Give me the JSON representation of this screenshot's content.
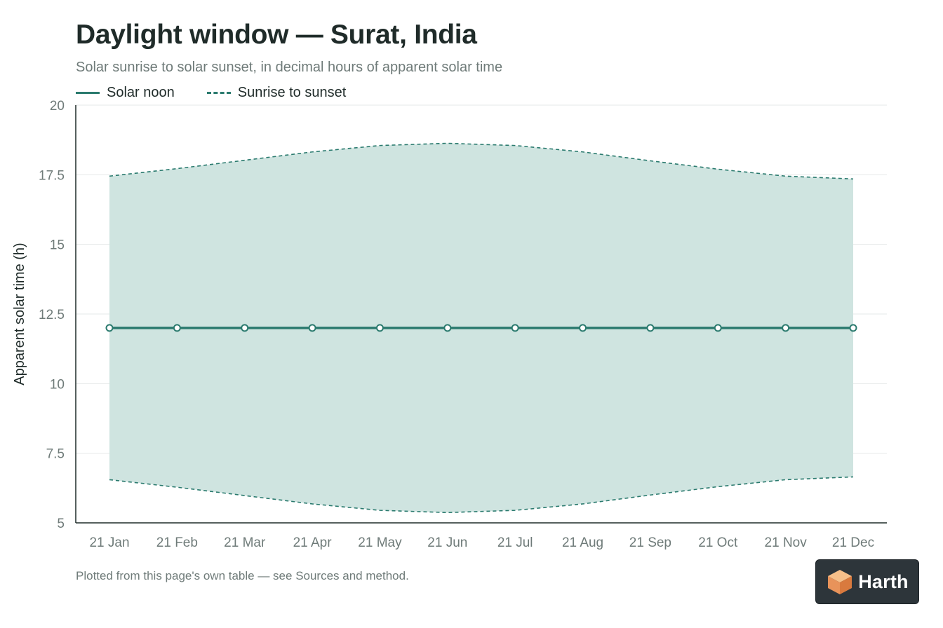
{
  "title": "Daylight window — Surat, India",
  "subtitle": "Solar sunrise to solar sunset, in decimal hours of apparent solar time",
  "legend": {
    "noon_label": "Solar noon",
    "range_label": "Sunrise to sunset"
  },
  "footnote": "Plotted from this page's own table — see Sources and method.",
  "logo": {
    "text": "Harth"
  },
  "colors": {
    "accent": "#2a7a6e",
    "band_fill": "#cfe4e0",
    "grid": "#e6eaea",
    "axis": "#1f2b29"
  },
  "chart_data": {
    "type": "area",
    "categories": [
      "21 Jan",
      "21 Feb",
      "21 Mar",
      "21 Apr",
      "21 May",
      "21 Jun",
      "21 Jul",
      "21 Aug",
      "21 Sep",
      "21 Oct",
      "21 Nov",
      "21 Dec"
    ],
    "series": [
      {
        "name": "Solar noon",
        "values": [
          12,
          12,
          12,
          12,
          12,
          12,
          12,
          12,
          12,
          12,
          12,
          12
        ]
      },
      {
        "name": "Sunrise to sunset",
        "sunrise": [
          6.55,
          6.28,
          5.98,
          5.68,
          5.45,
          5.37,
          5.45,
          5.68,
          6.0,
          6.3,
          6.55,
          6.65
        ],
        "sunset": [
          17.45,
          17.72,
          18.02,
          18.32,
          18.55,
          18.63,
          18.55,
          18.32,
          18.0,
          17.7,
          17.45,
          17.35
        ]
      }
    ],
    "title": "Daylight window — Surat, India",
    "ylabel": "Apparent solar time (h)",
    "xlabel": "",
    "ylim": [
      5,
      20
    ],
    "yticks": [
      5,
      7.5,
      10,
      12.5,
      15,
      17.5,
      20
    ],
    "ytick_labels": [
      "5",
      "7.5",
      "10",
      "12.5",
      "15",
      "17.5",
      "20"
    ],
    "grid": "horizontal",
    "legend_position": "top-left"
  }
}
